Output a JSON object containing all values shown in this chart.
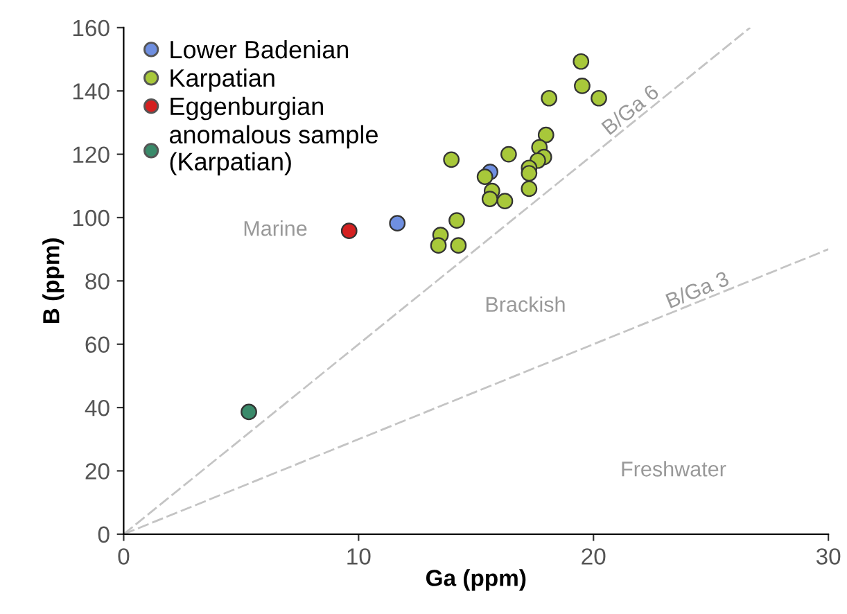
{
  "chart_data": {
    "type": "scatter",
    "xlabel": "Ga (ppm)",
    "ylabel": "B (ppm)",
    "xlim": [
      0,
      30
    ],
    "ylim": [
      0,
      160
    ],
    "xticks": [
      0,
      10,
      20,
      30
    ],
    "yticks": [
      0,
      20,
      40,
      60,
      80,
      100,
      120,
      140,
      160
    ],
    "grid": false,
    "legend": "top left",
    "marker": "circle",
    "series": [
      {
        "name": "Lower Badenian",
        "color": "#6f8fe0",
        "x": [
          15.6,
          11.65
        ],
        "values": [
          114.4,
          98.2
        ]
      },
      {
        "name": "Karpatian",
        "color": "#a8c83a",
        "x": [
          19.47,
          19.52,
          20.23,
          18.11,
          17.98,
          17.7,
          17.89,
          17.63,
          17.26,
          17.26,
          17.26,
          16.39,
          13.95,
          15.38,
          15.68,
          15.59,
          16.23,
          14.18,
          13.49,
          13.4,
          14.25
        ],
        "values": [
          149.3,
          141.6,
          137.7,
          137.7,
          126.1,
          122.2,
          119.1,
          118.0,
          115.7,
          114.0,
          109.1,
          120.0,
          118.3,
          112.9,
          108.4,
          105.9,
          105.2,
          99.1,
          94.5,
          91.2,
          91.2
        ]
      },
      {
        "name": "Eggenburgian",
        "color": "#d42020",
        "x": [
          9.6
        ],
        "values": [
          95.8
        ]
      },
      {
        "name": "anomalous sample\n(Karpatian)",
        "color": "#3a8a6a",
        "x": [
          5.33
        ],
        "values": [
          38.6
        ]
      },
      {
        "name": "B/Ga 6",
        "type": "line",
        "marker": "none",
        "line_style": "dashed",
        "color": "#c4c4c4",
        "x": [
          0,
          26.67
        ],
        "values": [
          0,
          160
        ]
      },
      {
        "name": "B/Ga 3",
        "type": "line",
        "marker": "none",
        "line_style": "dashed",
        "color": "#c4c4c4",
        "x": [
          0,
          30
        ],
        "values": [
          0,
          90
        ]
      }
    ],
    "annotations": [
      "Marine",
      "Brackish",
      "Freshwater"
    ]
  }
}
